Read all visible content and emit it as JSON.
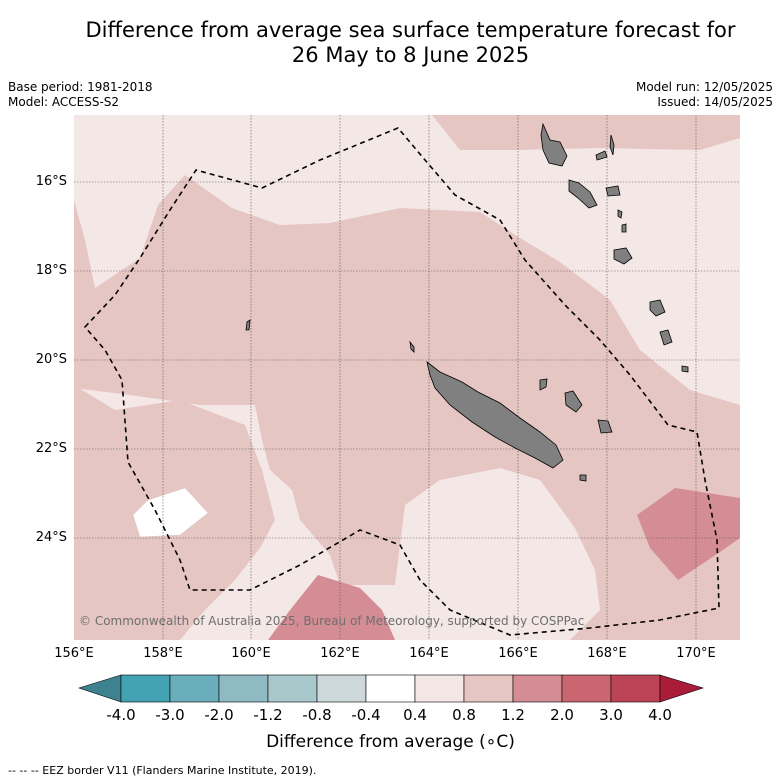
{
  "title_line1": "Difference from average sea surface temperature forecast for",
  "title_line2": "26 May to 8 June 2025",
  "meta": {
    "base_period": "Base period: 1981-2018",
    "model": "Model: ACCESS-S2",
    "model_run": "Model run: 12/05/2025",
    "issued": "Issued: 14/05/2025"
  },
  "map": {
    "lat_labels": [
      "16°S",
      "18°S",
      "20°S",
      "22°S",
      "24°S"
    ],
    "lon_labels": [
      "156°E",
      "158°E",
      "160°E",
      "162°E",
      "164°E",
      "166°E",
      "168°E",
      "170°E"
    ],
    "copyright": "© Commonwealth of Australia 2025, Bureau of Meteorology, supported by COSPPac",
    "colors": {
      "ocean_light": "#f4e8e7",
      "ocean_mid": "#e6c6c3",
      "ocean_warm": "#d48c95",
      "land": "#808080",
      "neutral": "#ffffff"
    }
  },
  "colorbar": {
    "title": "Difference from average (∘C)",
    "labels": [
      "-4.0",
      "-3.0",
      "-2.0",
      "-1.2",
      "-0.8",
      "-0.4",
      "0.4",
      "0.8",
      "1.2",
      "2.0",
      "3.0",
      "4.0"
    ],
    "colors": [
      "#44a3b3",
      "#6aaebb",
      "#8fbac4",
      "#a8c8cc",
      "#cdd8da",
      "#ffffff",
      "#f4e8e7",
      "#e6c6c3",
      "#d48c95",
      "#cb6670",
      "#bd4455"
    ],
    "under_color": "#3e8290",
    "over_color": "#a91c3a"
  },
  "footnote": "--  --  -- EEZ border V11 (Flanders Marine Institute, 2019)."
}
